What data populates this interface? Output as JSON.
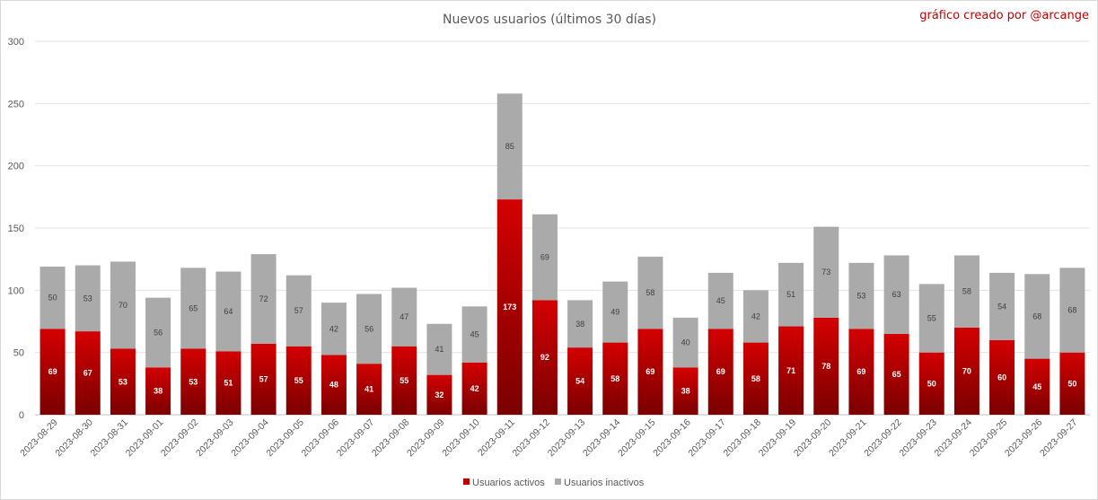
{
  "credit": "gráfico creado por @arcange",
  "chart_data": {
    "type": "bar",
    "stacked": true,
    "title": "Nuevos usuarios (últimos 30 días)",
    "xlabel": "",
    "ylabel": "",
    "ylim": [
      0,
      300
    ],
    "yticks": [
      0,
      50,
      100,
      150,
      200,
      250,
      300
    ],
    "grid": true,
    "legend_position": "bottom",
    "categories": [
      "2023-08-29",
      "2023-08-30",
      "2023-08-31",
      "2023-09-01",
      "2023-09-02",
      "2023-09-03",
      "2023-09-04",
      "2023-09-05",
      "2023-09-06",
      "2023-09-07",
      "2023-09-08",
      "2023-09-09",
      "2023-09-10",
      "2023-09-11",
      "2023-09-12",
      "2023-09-13",
      "2023-09-14",
      "2023-09-15",
      "2023-09-16",
      "2023-09-17",
      "2023-09-18",
      "2023-09-19",
      "2023-09-20",
      "2023-09-21",
      "2023-09-22",
      "2023-09-23",
      "2023-09-24",
      "2023-09-25",
      "2023-09-26",
      "2023-09-27"
    ],
    "series": [
      {
        "name": "Usuarios activos",
        "color": "#c00000",
        "values": [
          69,
          67,
          53,
          38,
          53,
          51,
          57,
          55,
          48,
          41,
          55,
          32,
          42,
          173,
          92,
          54,
          58,
          69,
          38,
          69,
          58,
          71,
          78,
          69,
          65,
          50,
          70,
          60,
          45,
          50
        ]
      },
      {
        "name": "Usuarios inactivos",
        "color": "#aaaaaa",
        "values": [
          50,
          53,
          70,
          56,
          65,
          64,
          72,
          57,
          42,
          56,
          47,
          41,
          45,
          85,
          69,
          38,
          49,
          58,
          40,
          45,
          42,
          51,
          73,
          53,
          63,
          55,
          58,
          54,
          68,
          68
        ]
      }
    ]
  }
}
